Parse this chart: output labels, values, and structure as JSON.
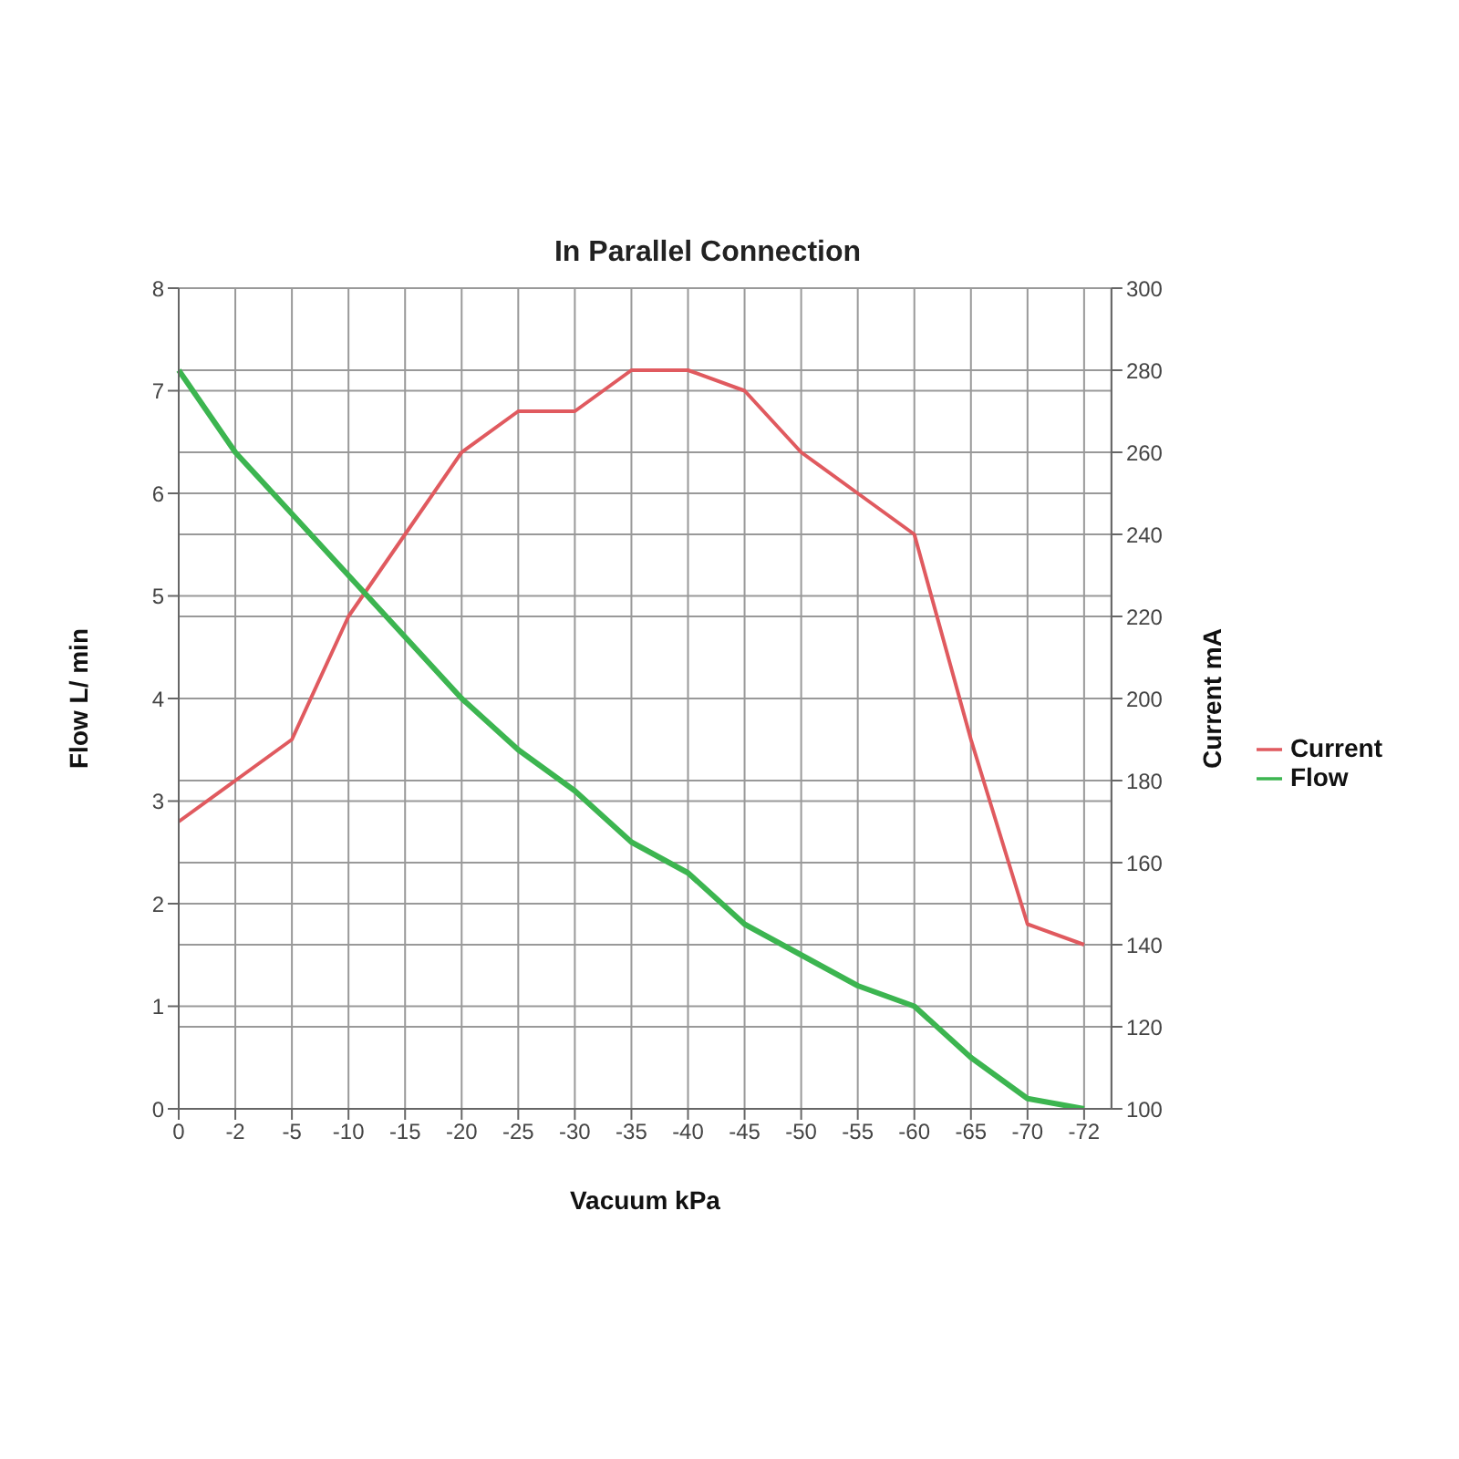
{
  "chart_data": {
    "type": "line",
    "title": "In Parallel Connection",
    "xlabel": "Vacuum kPa",
    "ylabel": "Flow  L/ min",
    "y2label": "Current mA",
    "categories": [
      "0",
      "-2",
      "-5",
      "-10",
      "-15",
      "-20",
      "-25",
      "-30",
      "-35",
      "-40",
      "-45",
      "-50",
      "-55",
      "-60",
      "-65",
      "-70",
      "-72"
    ],
    "series": [
      {
        "name": "Current",
        "color": "#e05a5f",
        "axis": "y2",
        "values": [
          170,
          180,
          190,
          220,
          240,
          260,
          270,
          270,
          280,
          280,
          275,
          260,
          250,
          240,
          190,
          145,
          140
        ]
      },
      {
        "name": "Flow",
        "color": "#3cb550",
        "values": [
          7.2,
          6.4,
          5.8,
          5.2,
          4.6,
          4.0,
          3.5,
          3.1,
          2.6,
          2.3,
          1.8,
          1.5,
          1.2,
          1.0,
          0.5,
          0.1,
          0.0
        ]
      }
    ],
    "ylim": [
      0,
      8
    ],
    "yticks": [
      0,
      1,
      2,
      3,
      4,
      5,
      6,
      7,
      8
    ],
    "y2lim": [
      100,
      300
    ],
    "y2ticks": [
      100,
      120,
      140,
      160,
      180,
      200,
      220,
      240,
      260,
      280,
      300
    ],
    "grid": true,
    "legend": "right",
    "marker": "none",
    "line_style": "solid"
  }
}
